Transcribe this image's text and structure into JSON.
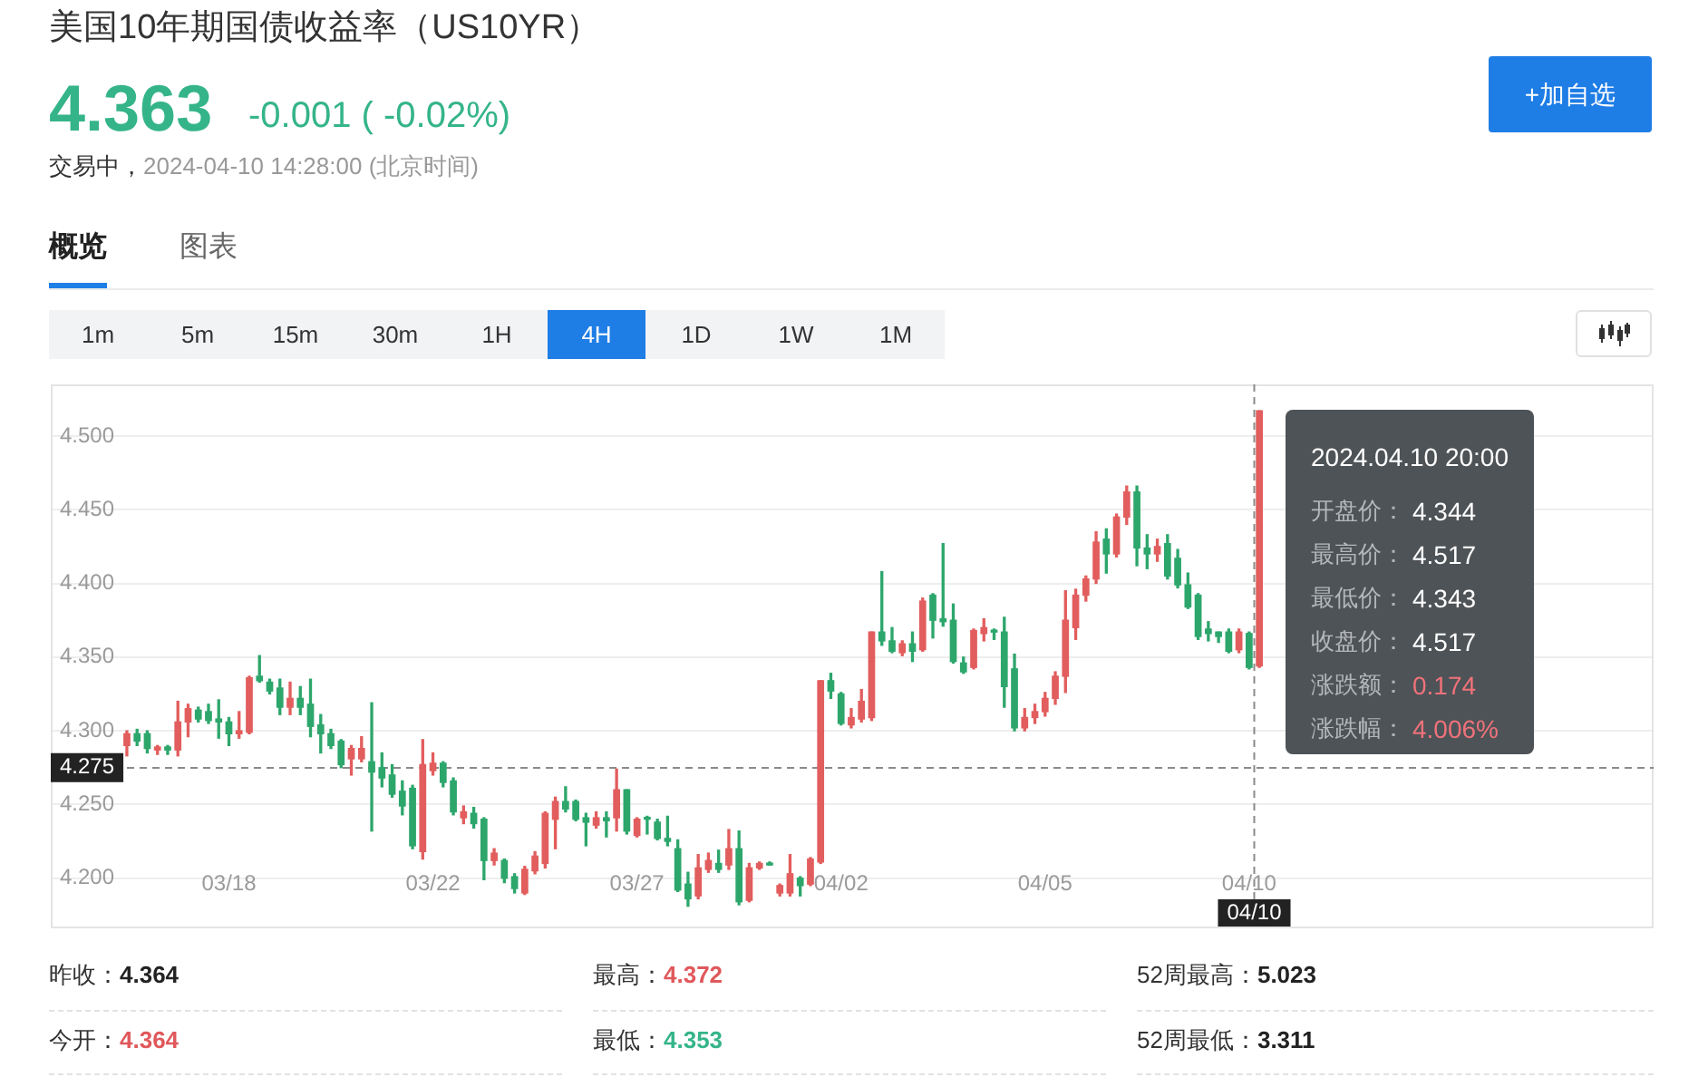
{
  "chart_data": {
    "type": "candlestick",
    "title": "美国10年期国债收益率（US10YR）",
    "categories": [
      null,
      null,
      null,
      null,
      null,
      null,
      null,
      null,
      null,
      null,
      "03/18",
      null,
      null,
      null,
      null,
      null,
      null,
      null,
      null,
      null,
      null,
      null,
      null,
      null,
      null,
      null,
      null,
      null,
      null,
      null,
      "03/22",
      null,
      null,
      null,
      null,
      null,
      null,
      null,
      null,
      null,
      null,
      null,
      null,
      null,
      null,
      null,
      null,
      null,
      null,
      null,
      "03/27",
      null,
      null,
      null,
      null,
      null,
      null,
      null,
      null,
      null,
      null,
      null,
      null,
      null,
      null,
      null,
      null,
      null,
      null,
      null,
      "04/02",
      null,
      null,
      null,
      null,
      null,
      null,
      null,
      null,
      null,
      null,
      null,
      null,
      null,
      null,
      null,
      null,
      null,
      null,
      null,
      "04/05",
      null,
      null,
      null,
      null,
      null,
      null,
      null,
      null,
      null,
      null,
      null,
      null,
      null,
      null,
      null,
      null,
      null,
      null,
      null,
      "04/10",
      null
    ],
    "ohlc": [
      [
        4.29,
        4.3,
        4.283,
        4.298
      ],
      [
        4.298,
        4.301,
        4.29,
        4.293
      ],
      [
        4.298,
        4.3,
        4.285,
        4.288
      ],
      [
        4.287,
        4.29,
        4.284,
        4.289
      ],
      [
        4.289,
        4.29,
        4.284,
        4.287
      ],
      [
        4.287,
        4.32,
        4.283,
        4.306
      ],
      [
        4.306,
        4.318,
        4.296,
        4.315
      ],
      [
        4.314,
        4.316,
        4.306,
        4.308
      ],
      [
        4.313,
        4.318,
        4.305,
        4.307
      ],
      [
        4.308,
        4.321,
        4.295,
        4.306
      ],
      [
        4.306,
        4.309,
        4.29,
        4.298
      ],
      [
        4.298,
        4.313,
        4.295,
        4.3
      ],
      [
        4.299,
        4.337,
        4.298,
        4.336
      ],
      [
        4.337,
        4.351,
        4.333,
        4.334
      ],
      [
        4.333,
        4.335,
        4.325,
        4.327
      ],
      [
        4.329,
        4.335,
        4.311,
        4.316
      ],
      [
        4.316,
        4.333,
        4.311,
        4.322
      ],
      [
        4.322,
        4.33,
        4.311,
        4.316
      ],
      [
        4.318,
        4.335,
        4.296,
        4.303
      ],
      [
        4.304,
        4.311,
        4.285,
        4.298
      ],
      [
        4.298,
        4.301,
        4.288,
        4.29
      ],
      [
        4.293,
        4.294,
        4.275,
        4.277
      ],
      [
        4.281,
        4.29,
        4.27,
        4.288
      ],
      [
        4.281,
        4.296,
        4.279,
        4.288
      ],
      [
        4.279,
        4.319,
        4.232,
        4.272
      ],
      [
        4.275,
        4.285,
        4.262,
        4.268
      ],
      [
        4.27,
        4.277,
        4.255,
        4.257
      ],
      [
        4.259,
        4.266,
        4.243,
        4.249
      ],
      [
        4.261,
        4.263,
        4.22,
        4.222
      ],
      [
        4.218,
        4.294,
        4.213,
        4.277
      ],
      [
        4.273,
        4.285,
        4.27,
        4.278
      ],
      [
        4.278,
        4.279,
        4.262,
        4.265
      ],
      [
        4.266,
        4.268,
        4.243,
        4.245
      ],
      [
        4.241,
        4.249,
        4.237,
        4.245
      ],
      [
        4.244,
        4.248,
        4.234,
        4.237
      ],
      [
        4.24,
        4.241,
        4.199,
        4.212
      ],
      [
        4.212,
        4.22,
        4.209,
        4.217
      ],
      [
        4.212,
        4.213,
        4.197,
        4.2
      ],
      [
        4.201,
        4.203,
        4.19,
        4.193
      ],
      [
        4.19,
        4.208,
        4.189,
        4.206
      ],
      [
        4.205,
        4.218,
        4.203,
        4.215
      ],
      [
        4.21,
        4.245,
        4.207,
        4.244
      ],
      [
        4.24,
        4.255,
        4.22,
        4.252
      ],
      [
        4.252,
        4.262,
        4.245,
        4.247
      ],
      [
        4.252,
        4.253,
        4.239,
        4.24
      ],
      [
        4.241,
        4.244,
        4.222,
        4.238
      ],
      [
        4.236,
        4.245,
        4.234,
        4.241
      ],
      [
        4.241,
        4.245,
        4.228,
        4.239
      ],
      [
        4.241,
        4.274,
        4.232,
        4.26
      ],
      [
        4.26,
        4.26,
        4.23,
        4.232
      ],
      [
        4.229,
        4.241,
        4.228,
        4.24
      ],
      [
        4.241,
        4.242,
        4.23,
        4.24
      ],
      [
        4.238,
        4.24,
        4.226,
        4.227
      ],
      [
        4.227,
        4.242,
        4.222,
        4.225
      ],
      [
        4.22,
        4.226,
        4.191,
        4.192
      ],
      [
        4.196,
        4.204,
        4.181,
        4.186
      ],
      [
        4.188,
        4.216,
        4.186,
        4.207
      ],
      [
        4.206,
        4.217,
        4.204,
        4.212
      ],
      [
        4.21,
        4.219,
        4.204,
        4.206
      ],
      [
        4.209,
        4.233,
        4.206,
        4.22
      ],
      [
        4.22,
        4.232,
        4.182,
        4.184
      ],
      [
        4.185,
        4.21,
        4.184,
        4.207
      ],
      [
        4.207,
        4.211,
        4.206,
        4.21
      ],
      [
        4.21,
        4.211,
        4.209,
        4.209
      ],
      [
        4.19,
        4.196,
        4.188,
        4.195
      ],
      [
        4.19,
        4.216,
        4.188,
        4.203
      ],
      [
        4.2,
        4.201,
        4.188,
        4.195
      ],
      [
        4.196,
        4.214,
        4.195,
        4.213
      ],
      [
        4.211,
        4.334,
        4.21,
        4.334
      ],
      [
        4.334,
        4.339,
        4.322,
        4.327
      ],
      [
        4.325,
        4.326,
        4.304,
        4.305
      ],
      [
        4.304,
        4.315,
        4.302,
        4.309
      ],
      [
        4.308,
        4.328,
        4.306,
        4.32
      ],
      [
        4.309,
        4.367,
        4.307,
        4.367
      ],
      [
        4.367,
        4.408,
        4.358,
        4.361
      ],
      [
        4.361,
        4.37,
        4.353,
        4.354
      ],
      [
        4.353,
        4.361,
        4.351,
        4.359
      ],
      [
        4.359,
        4.367,
        4.347,
        4.354
      ],
      [
        4.355,
        4.39,
        4.354,
        4.388
      ],
      [
        4.392,
        4.393,
        4.363,
        4.375
      ],
      [
        4.376,
        4.427,
        4.371,
        4.374
      ],
      [
        4.375,
        4.386,
        4.346,
        4.347
      ],
      [
        4.346,
        4.35,
        4.339,
        4.34
      ],
      [
        4.343,
        4.369,
        4.342,
        4.368
      ],
      [
        4.366,
        4.376,
        4.361,
        4.37
      ],
      [
        4.368,
        4.369,
        4.362,
        4.367
      ],
      [
        4.367,
        4.377,
        4.316,
        4.33
      ],
      [
        4.342,
        4.352,
        4.3,
        4.302
      ],
      [
        4.302,
        4.315,
        4.3,
        4.309
      ],
      [
        4.309,
        4.318,
        4.305,
        4.313
      ],
      [
        4.313,
        4.326,
        4.31,
        4.322
      ],
      [
        4.322,
        4.34,
        4.318,
        4.337
      ],
      [
        4.337,
        4.395,
        4.326,
        4.375
      ],
      [
        4.37,
        4.396,
        4.362,
        4.392
      ],
      [
        4.392,
        4.405,
        4.388,
        4.403
      ],
      [
        4.403,
        4.435,
        4.4,
        4.428
      ],
      [
        4.43,
        4.437,
        4.407,
        4.42
      ],
      [
        4.42,
        4.447,
        4.418,
        4.445
      ],
      [
        4.445,
        4.466,
        4.44,
        4.462
      ],
      [
        4.462,
        4.466,
        4.412,
        4.424
      ],
      [
        4.424,
        4.433,
        4.41,
        4.42
      ],
      [
        4.42,
        4.43,
        4.415,
        4.425
      ],
      [
        4.427,
        4.433,
        4.403,
        4.405
      ],
      [
        4.417,
        4.423,
        4.397,
        4.399
      ],
      [
        4.399,
        4.407,
        4.383,
        4.384
      ],
      [
        4.392,
        4.393,
        4.362,
        4.364
      ],
      [
        4.369,
        4.374,
        4.361,
        4.366
      ],
      [
        4.367,
        4.367,
        4.36,
        4.364
      ],
      [
        4.367,
        4.369,
        4.353,
        4.354
      ],
      [
        4.355,
        4.369,
        4.353,
        4.367
      ],
      [
        4.366,
        4.367,
        4.342,
        4.343
      ],
      [
        4.344,
        4.517,
        4.343,
        4.517
      ]
    ],
    "colors": [
      "#e25d5d",
      "#2da66c",
      "#2da66c",
      "#e25d5d",
      "#2da66c",
      "#e25d5d",
      "#e25d5d",
      "#2da66c",
      "#2da66c",
      "#2da66c",
      "#2da66c",
      "#e25d5d",
      "#e25d5d",
      "#2da66c",
      "#2da66c",
      "#2da66c",
      "#e25d5d",
      "#2da66c",
      "#2da66c",
      "#2da66c",
      "#2da66c",
      "#2da66c",
      "#e25d5d",
      "#e25d5d",
      "#2da66c",
      "#2da66c",
      "#2da66c",
      "#2da66c",
      "#2da66c",
      "#e25d5d",
      "#e25d5d",
      "#2da66c",
      "#2da66c",
      "#e25d5d",
      "#2da66c",
      "#2da66c",
      "#e25d5d",
      "#2da66c",
      "#2da66c",
      "#e25d5d",
      "#e25d5d",
      "#e25d5d",
      "#e25d5d",
      "#2da66c",
      "#2da66c",
      "#2da66c",
      "#e25d5d",
      "#2da66c",
      "#e25d5d",
      "#2da66c",
      "#e25d5d",
      "#2da66c",
      "#2da66c",
      "#2da66c",
      "#2da66c",
      "#2da66c",
      "#e25d5d",
      "#e25d5d",
      "#2da66c",
      "#e25d5d",
      "#2da66c",
      "#e25d5d",
      "#e25d5d",
      "#2da66c",
      "#e25d5d",
      "#e25d5d",
      "#2da66c",
      "#e25d5d",
      "#e25d5d",
      "#2da66c",
      "#2da66c",
      "#e25d5d",
      "#e25d5d",
      "#e25d5d",
      "#2da66c",
      "#2da66c",
      "#e25d5d",
      "#2da66c",
      "#e25d5d",
      "#2da66c",
      "#2da66c",
      "#2da66c",
      "#2da66c",
      "#e25d5d",
      "#e25d5d",
      "#2da66c",
      "#2da66c",
      "#2da66c",
      "#e25d5d",
      "#e25d5d",
      "#e25d5d",
      "#e25d5d",
      "#e25d5d",
      "#e25d5d",
      "#e25d5d",
      "#e25d5d",
      "#2da66c",
      "#e25d5d",
      "#e25d5d",
      "#2da66c",
      "#2da66c",
      "#e25d5d",
      "#2da66c",
      "#2da66c",
      "#2da66c",
      "#2da66c",
      "#2da66c",
      "#2da66c",
      "#2da66c",
      "#e25d5d",
      "#2da66c",
      "#e25d5d"
    ],
    "ylim": [
      4.166,
      4.535
    ],
    "yticks": [
      {
        "value": 4.2,
        "label": "4.200"
      },
      {
        "value": 4.25,
        "label": "4.250"
      },
      {
        "value": 4.3,
        "label": "4.300"
      },
      {
        "value": 4.35,
        "label": "4.350"
      },
      {
        "value": 4.4,
        "label": "4.400"
      },
      {
        "value": 4.45,
        "label": "4.450"
      },
      {
        "value": 4.5,
        "label": "4.500"
      }
    ],
    "grid": "y",
    "ref_lines": [
      {
        "axis": "y",
        "value": 4.275,
        "label": "4.275",
        "line_style": "dashed",
        "color": "#8a8a8a"
      },
      {
        "axis": "x",
        "value": "04/10",
        "label": "04/10",
        "line_style": "dashed",
        "color": "#8a8a8a"
      }
    ],
    "annotations": [
      "4.363",
      "-0.001 ( -0.02%)",
      "交易中，",
      "2024-04-10 14:28:00 (北京时间)",
      "+加自选",
      "概览",
      "图表",
      "1m",
      "5m",
      "15m",
      "30m",
      "1H",
      "4H",
      "1D",
      "1W",
      "1M",
      "2024.04.10 20:00",
      "开盘价：",
      "4.344",
      "最高价：",
      "4.517",
      "最低价：",
      "4.343",
      "收盘价：",
      "4.517",
      "涨跌额：",
      "0.174",
      "涨跌幅：",
      "4.006%",
      "昨收：",
      "4.364",
      "最高：",
      "4.372",
      "52周最高：",
      "5.023",
      "今开：",
      "4.364",
      "最低：",
      "4.353",
      "52周最低：",
      "3.311"
    ]
  }
}
